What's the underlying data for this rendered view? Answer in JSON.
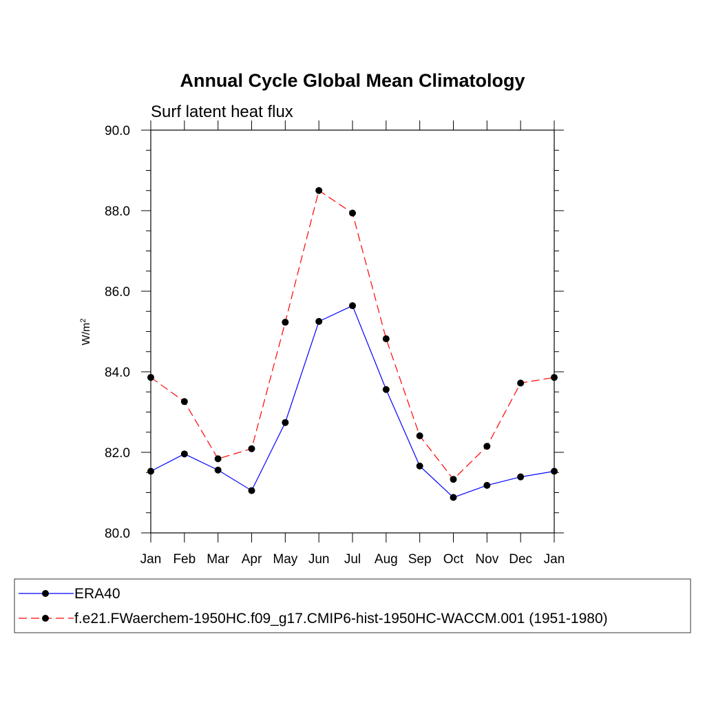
{
  "chart_data": {
    "type": "line",
    "title": "Annual Cycle Global Mean Climatology",
    "subtitle": "Surf latent heat flux",
    "ylabel": "W/m",
    "ylabel_sup": "2",
    "xlabel": "",
    "categories": [
      "Jan",
      "Feb",
      "Mar",
      "Apr",
      "May",
      "Jun",
      "Jul",
      "Aug",
      "Sep",
      "Oct",
      "Nov",
      "Dec",
      "Jan"
    ],
    "ylim": [
      80.0,
      90.0
    ],
    "yticks": [
      "80.0",
      "82.0",
      "84.0",
      "86.0",
      "88.0",
      "90.0"
    ],
    "yticks_minor_step": 0.5,
    "series": [
      {
        "name": "ERA40",
        "color": "#0000ff",
        "dashed": false,
        "values": [
          81.53,
          81.96,
          81.56,
          81.05,
          82.74,
          85.25,
          85.64,
          83.56,
          81.66,
          80.88,
          81.18,
          81.39,
          81.53
        ]
      },
      {
        "name": "f.e21.FWaerchem-1950HC.f09_g17.CMIP6-hist-1950HC-WACCM.001 (1951-1980)",
        "color": "#ff0000",
        "dashed": true,
        "values": [
          83.86,
          83.26,
          81.84,
          82.09,
          85.23,
          88.5,
          87.94,
          84.82,
          82.41,
          81.33,
          82.15,
          83.72,
          83.86
        ]
      }
    ],
    "marker_color": "#000000",
    "legend_position": "bottom"
  }
}
